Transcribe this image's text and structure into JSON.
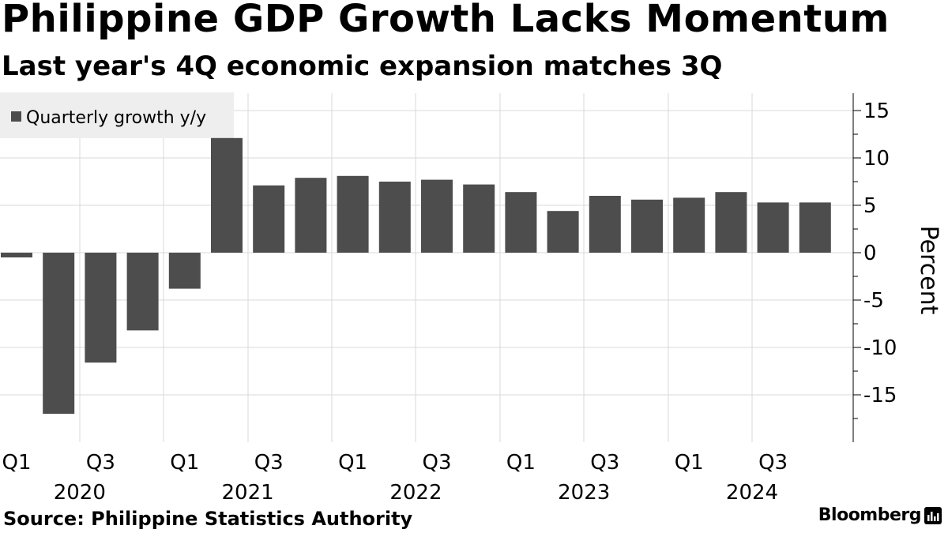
{
  "header": {
    "title": "Philippine GDP Growth Lacks Momentum",
    "subtitle": "Last year's 4Q economic expansion matches 3Q"
  },
  "footer": {
    "source": "Source: Philippine Statistics Authority",
    "brand": "Bloomberg"
  },
  "colors": {
    "bar": "#4d4d4d",
    "grid": "#d9d9d9",
    "legend_bg": "#eeeeee",
    "axis": "#000000"
  },
  "chart_data": {
    "type": "bar",
    "title": "Philippine GDP Growth Lacks Momentum",
    "subtitle": "Last year's 4Q economic expansion matches 3Q",
    "xlabel": "",
    "ylabel": "Percent",
    "ylim": [
      -20,
      17
    ],
    "yticks": [
      15,
      10,
      5,
      0,
      -5,
      -10,
      -15
    ],
    "ytick_labels": [
      "15",
      "10",
      "5",
      "0",
      "-5",
      "-10",
      "-15"
    ],
    "grid": true,
    "legend": {
      "position": "top-left",
      "entries": [
        "Quarterly growth y/y"
      ]
    },
    "categories": [
      "2020 Q1",
      "2020 Q2",
      "2020 Q3",
      "2020 Q4",
      "2021 Q1",
      "2021 Q2",
      "2021 Q3",
      "2021 Q4",
      "2022 Q1",
      "2022 Q2",
      "2022 Q3",
      "2022 Q4",
      "2023 Q1",
      "2023 Q2",
      "2023 Q3",
      "2023 Q4",
      "2024 Q1",
      "2024 Q2",
      "2024 Q3",
      "2024 Q4"
    ],
    "series": [
      {
        "name": "Quarterly growth y/y",
        "values": [
          -0.5,
          -17.0,
          -11.6,
          -8.2,
          -3.8,
          12.1,
          7.1,
          7.9,
          8.1,
          7.5,
          7.7,
          7.2,
          6.4,
          4.4,
          6.0,
          5.6,
          5.8,
          6.4,
          5.3,
          5.3
        ]
      }
    ],
    "x_tick_labels": [
      {
        "index": 0,
        "label": "Q1"
      },
      {
        "index": 2,
        "label": "Q3"
      },
      {
        "index": 4,
        "label": "Q1"
      },
      {
        "index": 6,
        "label": "Q3"
      },
      {
        "index": 8,
        "label": "Q1"
      },
      {
        "index": 10,
        "label": "Q3"
      },
      {
        "index": 12,
        "label": "Q1"
      },
      {
        "index": 14,
        "label": "Q3"
      },
      {
        "index": 16,
        "label": "Q1"
      },
      {
        "index": 18,
        "label": "Q3"
      }
    ],
    "year_labels": [
      "2020",
      "2021",
      "2022",
      "2023",
      "2024"
    ]
  }
}
